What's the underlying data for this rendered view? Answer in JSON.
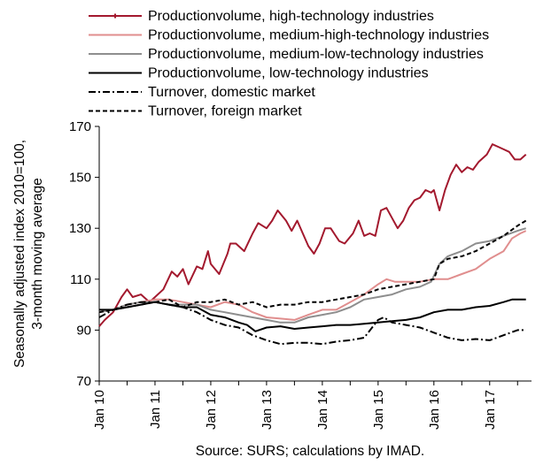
{
  "chart_data": {
    "type": "line",
    "source": "Source: SURS; calculations by IMAD.",
    "ylabel_lines": [
      "Seasonally adjusted index 2010=100,",
      "3-month moving average"
    ],
    "xlabel": "",
    "ylim": [
      70,
      170
    ],
    "yticks": [
      "70",
      "90",
      "110",
      "130",
      "150",
      "170"
    ],
    "xlim": [
      2010.0,
      2017.75
    ],
    "xticks": [
      {
        "label": "Jan 10",
        "x": 2010.0
      },
      {
        "label": "Jan 11",
        "x": 2011.0
      },
      {
        "label": "Jan 12",
        "x": 2012.0
      },
      {
        "label": "Jan 13",
        "x": 2013.0
      },
      {
        "label": "Jan 14",
        "x": 2014.0
      },
      {
        "label": "Jan 15",
        "x": 2015.0
      },
      {
        "label": "Jan 16",
        "x": 2016.0
      },
      {
        "label": "Jan 17",
        "x": 2017.0
      }
    ],
    "grid": false,
    "legend_position": "top",
    "series": [
      {
        "name": "Productionvolume, high-technology industries",
        "color": "#a3192e",
        "style": "solid-marker",
        "points": [
          [
            2010.0,
            91.5
          ],
          [
            2010.1,
            94
          ],
          [
            2010.25,
            97
          ],
          [
            2010.4,
            103
          ],
          [
            2010.5,
            106
          ],
          [
            2010.6,
            103
          ],
          [
            2010.75,
            104
          ],
          [
            2010.9,
            101
          ],
          [
            2011.0,
            103
          ],
          [
            2011.15,
            106
          ],
          [
            2011.3,
            113
          ],
          [
            2011.4,
            111
          ],
          [
            2011.5,
            114
          ],
          [
            2011.6,
            108
          ],
          [
            2011.75,
            115
          ],
          [
            2011.85,
            114
          ],
          [
            2011.95,
            121
          ],
          [
            2012.0,
            116
          ],
          [
            2012.15,
            112
          ],
          [
            2012.3,
            120
          ],
          [
            2012.35,
            124
          ],
          [
            2012.45,
            124
          ],
          [
            2012.6,
            121
          ],
          [
            2012.75,
            128
          ],
          [
            2012.85,
            132
          ],
          [
            2013.0,
            130
          ],
          [
            2013.1,
            133
          ],
          [
            2013.2,
            137
          ],
          [
            2013.35,
            133
          ],
          [
            2013.45,
            129
          ],
          [
            2013.55,
            133
          ],
          [
            2013.65,
            128
          ],
          [
            2013.75,
            123
          ],
          [
            2013.85,
            120
          ],
          [
            2013.95,
            124
          ],
          [
            2014.05,
            130
          ],
          [
            2014.15,
            130
          ],
          [
            2014.3,
            125
          ],
          [
            2014.4,
            124
          ],
          [
            2014.55,
            128
          ],
          [
            2014.65,
            133
          ],
          [
            2014.75,
            127
          ],
          [
            2014.85,
            128
          ],
          [
            2014.95,
            127
          ],
          [
            2015.05,
            137
          ],
          [
            2015.15,
            138
          ],
          [
            2015.25,
            134
          ],
          [
            2015.35,
            130
          ],
          [
            2015.45,
            133
          ],
          [
            2015.55,
            138
          ],
          [
            2015.65,
            141
          ],
          [
            2015.75,
            142
          ],
          [
            2015.85,
            145
          ],
          [
            2015.95,
            144
          ],
          [
            2016.0,
            145
          ],
          [
            2016.1,
            137
          ],
          [
            2016.2,
            145
          ],
          [
            2016.3,
            151
          ],
          [
            2016.4,
            155
          ],
          [
            2016.5,
            152
          ],
          [
            2016.6,
            154
          ],
          [
            2016.7,
            153
          ],
          [
            2016.8,
            156
          ],
          [
            2016.95,
            159
          ],
          [
            2017.05,
            163
          ],
          [
            2017.15,
            162
          ],
          [
            2017.25,
            161
          ],
          [
            2017.35,
            160
          ],
          [
            2017.45,
            157
          ],
          [
            2017.55,
            157
          ],
          [
            2017.65,
            159
          ]
        ]
      },
      {
        "name": "Productionvolume, medium-high-technology industries",
        "color": "#e08e8e",
        "style": "solid",
        "points": [
          [
            2010.0,
            97
          ],
          [
            2010.25,
            98
          ],
          [
            2010.5,
            100
          ],
          [
            2010.75,
            101
          ],
          [
            2011.0,
            102
          ],
          [
            2011.25,
            102
          ],
          [
            2011.5,
            101
          ],
          [
            2011.75,
            100
          ],
          [
            2012.0,
            99
          ],
          [
            2012.25,
            101
          ],
          [
            2012.5,
            100
          ],
          [
            2012.75,
            97
          ],
          [
            2013.0,
            95
          ],
          [
            2013.25,
            94.5
          ],
          [
            2013.5,
            94
          ],
          [
            2013.75,
            96
          ],
          [
            2014.0,
            98
          ],
          [
            2014.25,
            98
          ],
          [
            2014.5,
            101
          ],
          [
            2014.75,
            104
          ],
          [
            2015.0,
            108
          ],
          [
            2015.15,
            110
          ],
          [
            2015.3,
            109
          ],
          [
            2015.5,
            109
          ],
          [
            2015.75,
            109
          ],
          [
            2016.0,
            110
          ],
          [
            2016.25,
            110
          ],
          [
            2016.5,
            112
          ],
          [
            2016.75,
            114
          ],
          [
            2017.0,
            118
          ],
          [
            2017.25,
            121
          ],
          [
            2017.4,
            126
          ],
          [
            2017.55,
            128
          ],
          [
            2017.65,
            129
          ]
        ]
      },
      {
        "name": "Productionvolume, medium-low-technology industries",
        "color": "#8e8e8e",
        "style": "solid",
        "points": [
          [
            2010.0,
            97
          ],
          [
            2010.25,
            98
          ],
          [
            2010.5,
            100
          ],
          [
            2010.75,
            101
          ],
          [
            2011.0,
            101
          ],
          [
            2011.25,
            100
          ],
          [
            2011.5,
            100
          ],
          [
            2011.75,
            100
          ],
          [
            2012.0,
            98
          ],
          [
            2012.25,
            97
          ],
          [
            2012.5,
            96
          ],
          [
            2012.75,
            95
          ],
          [
            2013.0,
            94
          ],
          [
            2013.25,
            93
          ],
          [
            2013.5,
            93
          ],
          [
            2013.75,
            95
          ],
          [
            2014.0,
            96
          ],
          [
            2014.25,
            97
          ],
          [
            2014.5,
            99
          ],
          [
            2014.75,
            102
          ],
          [
            2015.0,
            103
          ],
          [
            2015.25,
            104
          ],
          [
            2015.5,
            106
          ],
          [
            2015.75,
            107
          ],
          [
            2015.95,
            109
          ],
          [
            2016.1,
            116
          ],
          [
            2016.25,
            119
          ],
          [
            2016.5,
            121
          ],
          [
            2016.75,
            124
          ],
          [
            2017.0,
            125
          ],
          [
            2017.25,
            127
          ],
          [
            2017.5,
            129
          ],
          [
            2017.65,
            130
          ]
        ]
      },
      {
        "name": "Productionvolume, low-technology industries",
        "color": "#000000",
        "style": "solid",
        "points": [
          [
            2010.0,
            98
          ],
          [
            2010.25,
            98
          ],
          [
            2010.5,
            99
          ],
          [
            2010.75,
            100
          ],
          [
            2011.0,
            101
          ],
          [
            2011.25,
            100
          ],
          [
            2011.5,
            99
          ],
          [
            2011.75,
            99
          ],
          [
            2012.0,
            96
          ],
          [
            2012.25,
            95
          ],
          [
            2012.5,
            93
          ],
          [
            2012.65,
            92
          ],
          [
            2012.8,
            89.5
          ],
          [
            2013.0,
            91
          ],
          [
            2013.25,
            91.5
          ],
          [
            2013.5,
            90.5
          ],
          [
            2013.75,
            91
          ],
          [
            2014.0,
            91.5
          ],
          [
            2014.25,
            92
          ],
          [
            2014.5,
            92
          ],
          [
            2014.75,
            92.5
          ],
          [
            2015.0,
            93
          ],
          [
            2015.25,
            93.5
          ],
          [
            2015.5,
            94
          ],
          [
            2015.75,
            95
          ],
          [
            2016.0,
            97
          ],
          [
            2016.25,
            98
          ],
          [
            2016.5,
            98
          ],
          [
            2016.75,
            99
          ],
          [
            2017.0,
            99.5
          ],
          [
            2017.25,
            101
          ],
          [
            2017.4,
            102
          ],
          [
            2017.55,
            102
          ],
          [
            2017.65,
            102
          ]
        ]
      },
      {
        "name": "Turnover, domestic market",
        "color": "#000000",
        "style": "dashdot",
        "points": [
          [
            2010.0,
            95
          ],
          [
            2010.25,
            98
          ],
          [
            2010.5,
            100
          ],
          [
            2010.75,
            101
          ],
          [
            2011.0,
            101
          ],
          [
            2011.25,
            100
          ],
          [
            2011.5,
            99
          ],
          [
            2011.75,
            97
          ],
          [
            2012.0,
            94
          ],
          [
            2012.25,
            92
          ],
          [
            2012.5,
            91
          ],
          [
            2012.75,
            88
          ],
          [
            2013.0,
            86
          ],
          [
            2013.25,
            84.5
          ],
          [
            2013.5,
            85
          ],
          [
            2013.75,
            85
          ],
          [
            2014.0,
            84.5
          ],
          [
            2014.25,
            85.5
          ],
          [
            2014.5,
            86
          ],
          [
            2014.75,
            87
          ],
          [
            2015.0,
            94
          ],
          [
            2015.1,
            95
          ],
          [
            2015.25,
            93
          ],
          [
            2015.5,
            92
          ],
          [
            2015.75,
            91
          ],
          [
            2016.0,
            89
          ],
          [
            2016.25,
            87
          ],
          [
            2016.5,
            86
          ],
          [
            2016.75,
            86.5
          ],
          [
            2017.0,
            86
          ],
          [
            2017.25,
            88
          ],
          [
            2017.5,
            90
          ],
          [
            2017.65,
            90
          ]
        ]
      },
      {
        "name": "Turnover, foreign market",
        "color": "#000000",
        "style": "dashed",
        "points": [
          [
            2010.0,
            97
          ],
          [
            2010.25,
            98
          ],
          [
            2010.5,
            99
          ],
          [
            2010.75,
            100
          ],
          [
            2011.0,
            101
          ],
          [
            2011.25,
            102
          ],
          [
            2011.5,
            99
          ],
          [
            2011.75,
            101
          ],
          [
            2012.0,
            101
          ],
          [
            2012.25,
            102
          ],
          [
            2012.5,
            100
          ],
          [
            2012.75,
            101
          ],
          [
            2013.0,
            99
          ],
          [
            2013.25,
            100
          ],
          [
            2013.5,
            100
          ],
          [
            2013.75,
            101
          ],
          [
            2014.0,
            101
          ],
          [
            2014.25,
            102
          ],
          [
            2014.5,
            103
          ],
          [
            2014.75,
            104
          ],
          [
            2015.0,
            106
          ],
          [
            2015.25,
            107
          ],
          [
            2015.5,
            108
          ],
          [
            2015.75,
            109
          ],
          [
            2016.0,
            110
          ],
          [
            2016.1,
            116
          ],
          [
            2016.25,
            118
          ],
          [
            2016.5,
            119
          ],
          [
            2016.75,
            121
          ],
          [
            2017.0,
            124
          ],
          [
            2017.25,
            127
          ],
          [
            2017.5,
            131
          ],
          [
            2017.65,
            133
          ]
        ]
      }
    ]
  }
}
